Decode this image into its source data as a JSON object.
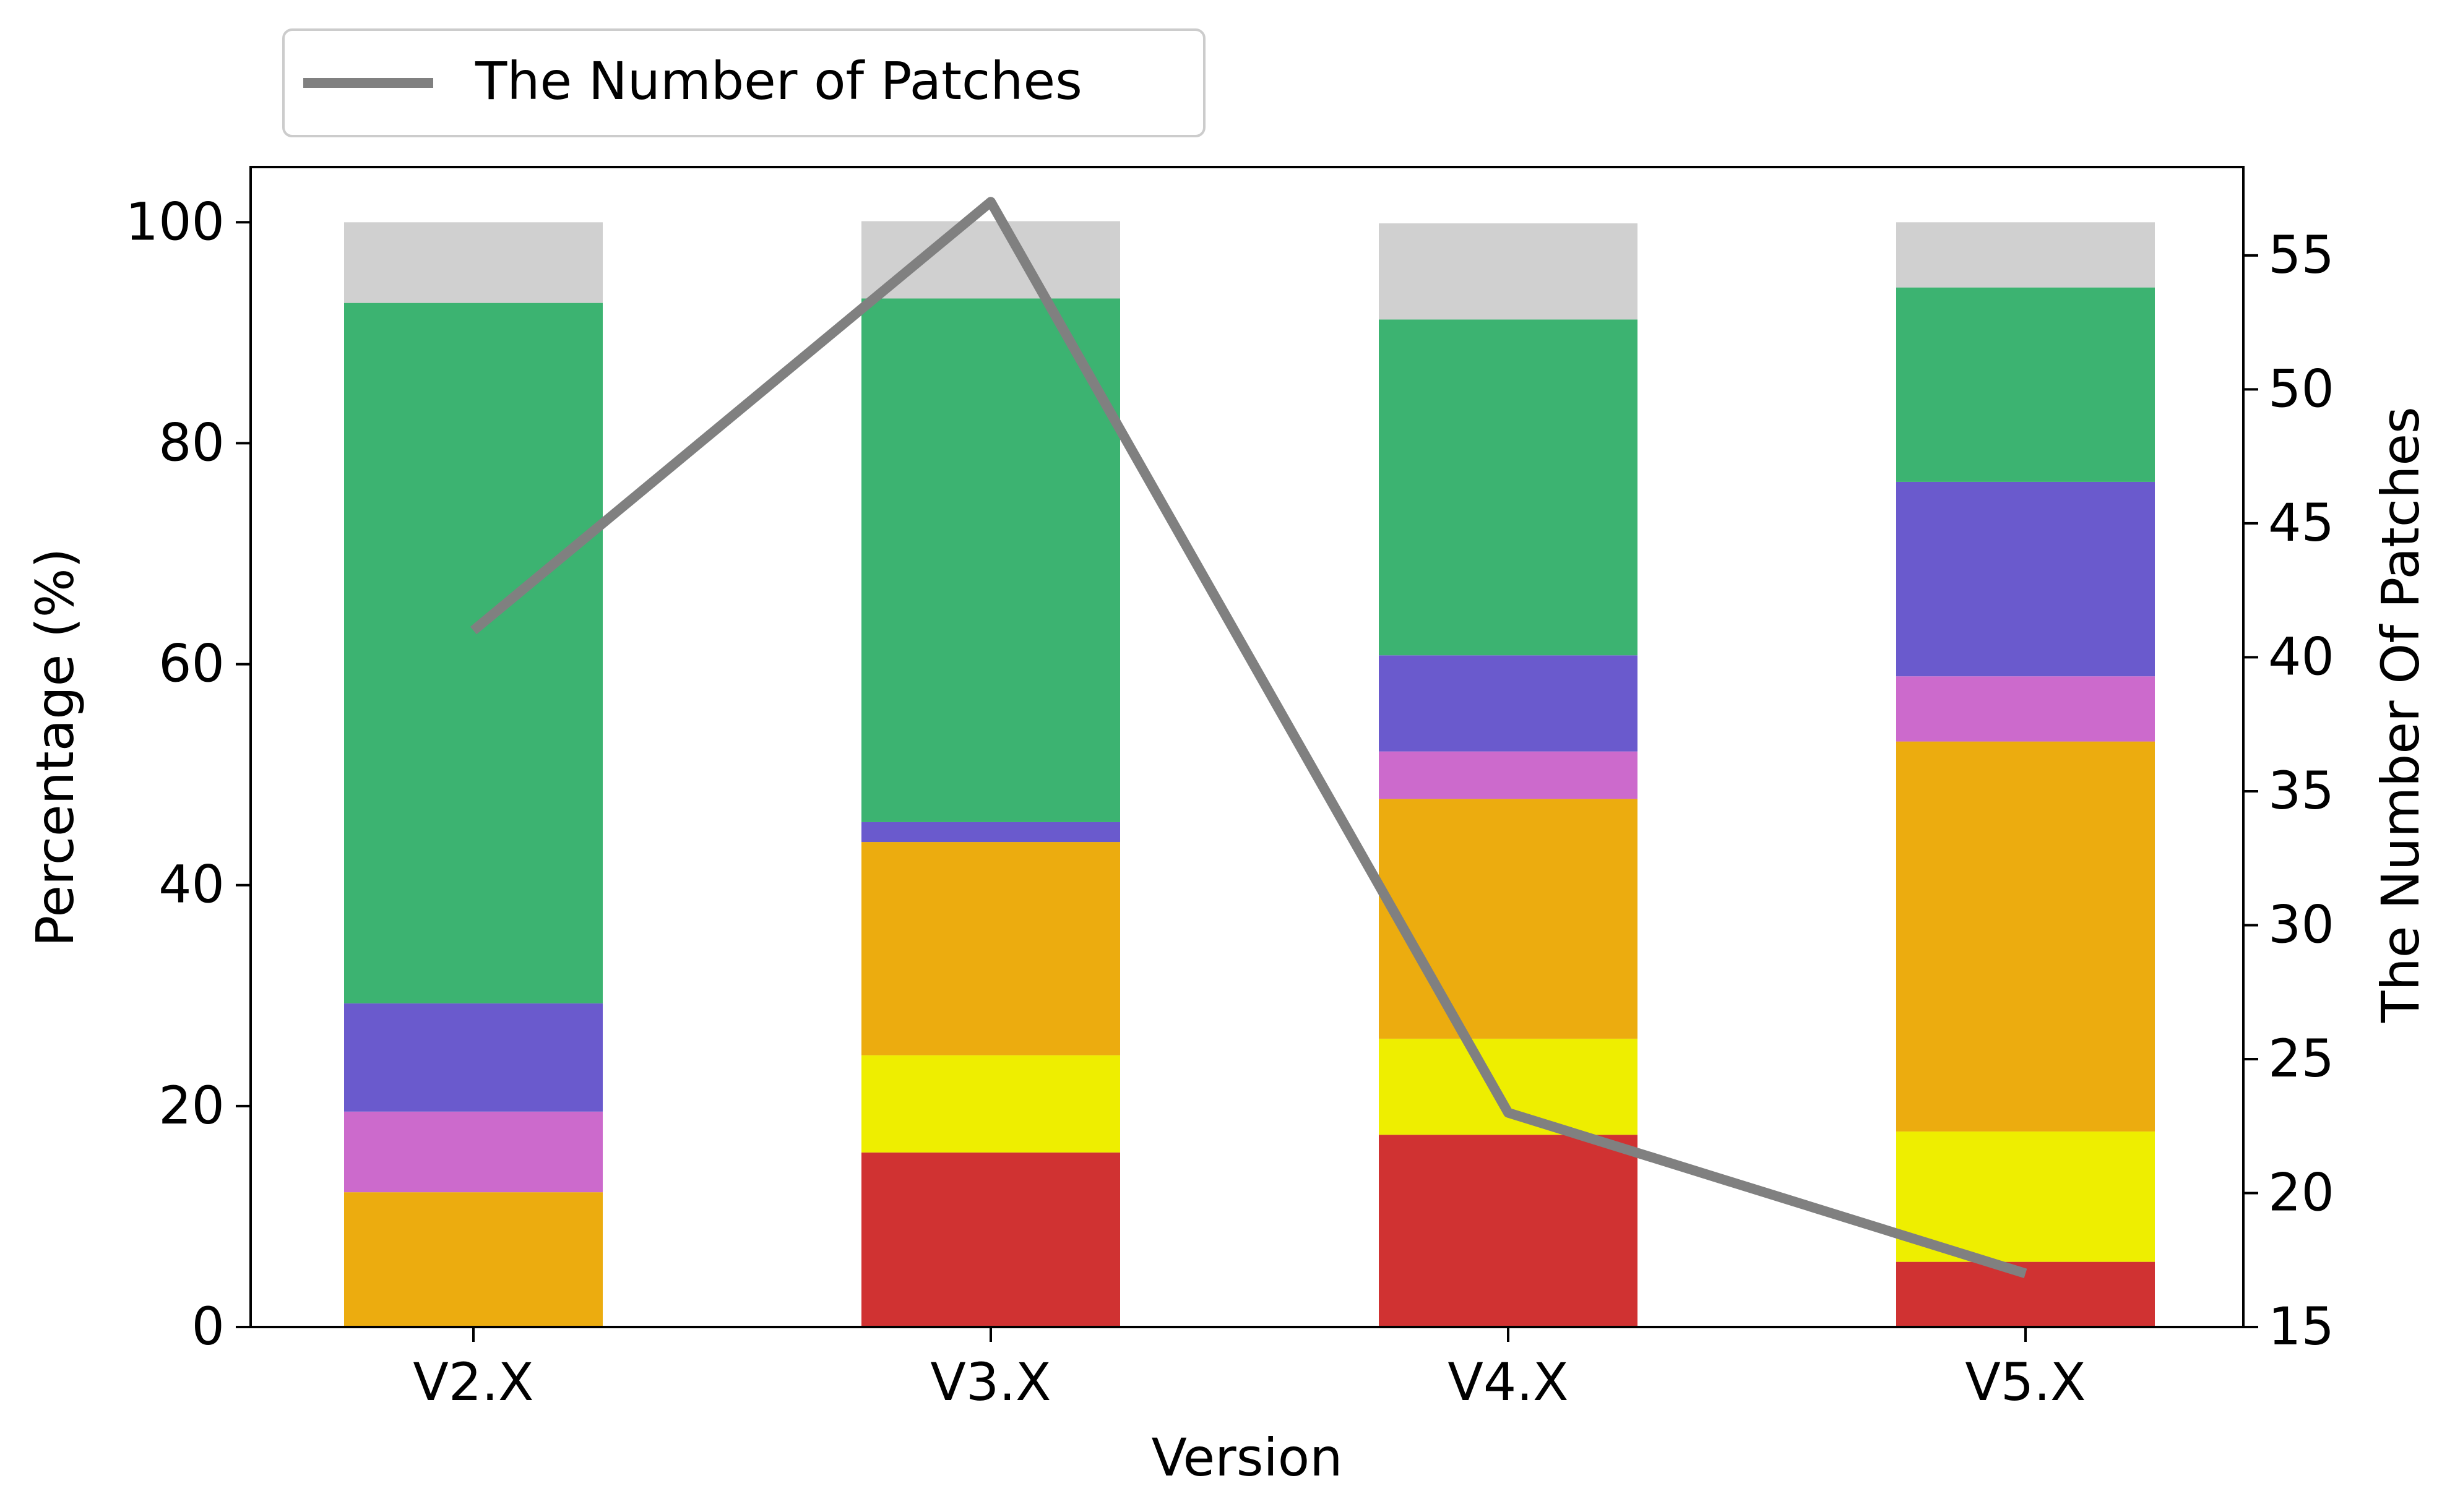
{
  "chart_data": {
    "type": "bar",
    "stacked": true,
    "categories": [
      "V2.X",
      "V3.X",
      "V4.X",
      "V5.X"
    ],
    "xlabel": "Version",
    "ylabel": "Percentage (%)",
    "y2label": "The Number Of Patches",
    "ylim": [
      0,
      105
    ],
    "yticks": [
      0,
      20,
      40,
      60,
      80,
      100
    ],
    "y2lim": [
      15,
      58.3
    ],
    "y2ticks": [
      15,
      20,
      25,
      30,
      35,
      40,
      45,
      50,
      55
    ],
    "grid": false,
    "legend_position": "top-left, above plot",
    "series": [
      {
        "color": "#d03232",
        "values": [
          0,
          15.8,
          17.4,
          5.9
        ]
      },
      {
        "color": "#eeee00",
        "values": [
          0,
          8.8,
          8.7,
          11.8
        ]
      },
      {
        "color": "#ecac0f",
        "values": [
          12.2,
          19.3,
          21.7,
          35.3
        ]
      },
      {
        "color": "#cc6acc",
        "values": [
          7.3,
          0,
          4.3,
          5.9
        ]
      },
      {
        "color": "#6a5acd",
        "values": [
          9.8,
          1.8,
          8.7,
          17.6
        ]
      },
      {
        "color": "#3cb371",
        "values": [
          63.4,
          47.4,
          30.4,
          17.6
        ]
      },
      {
        "color": "#d0d0d0",
        "values": [
          7.3,
          7.0,
          8.7,
          5.9
        ]
      }
    ],
    "line": {
      "name": "The Number of Patches",
      "color": "#808080",
      "axis": "right",
      "values": [
        41,
        57,
        23,
        17
      ]
    }
  }
}
